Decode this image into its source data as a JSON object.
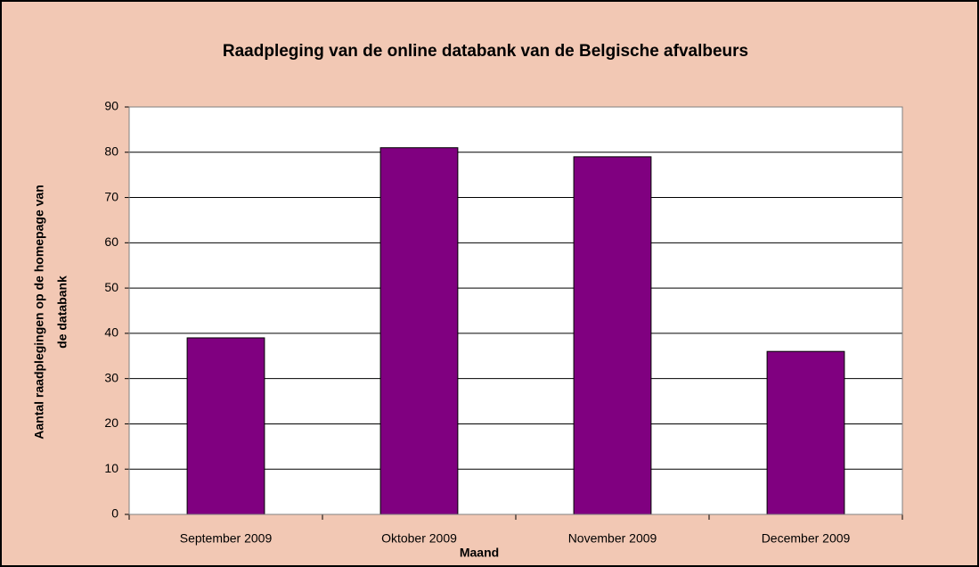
{
  "chart_data": {
    "type": "bar",
    "title": "Raadpleging van de online databank van de Belgische afvalbeurs",
    "x_label": "Maand",
    "y_label": [
      "Aantal raadplegingen op de homepage van",
      "de databank"
    ],
    "categories": [
      "September 2009",
      "Oktober 2009",
      "November 2009",
      "December 2009"
    ],
    "values": [
      39,
      81,
      79,
      36
    ],
    "color": "#800080",
    "ylim": [
      0,
      90
    ],
    "yticks": [
      0,
      10,
      20,
      30,
      40,
      50,
      60,
      70,
      80,
      90
    ],
    "grid": true
  }
}
